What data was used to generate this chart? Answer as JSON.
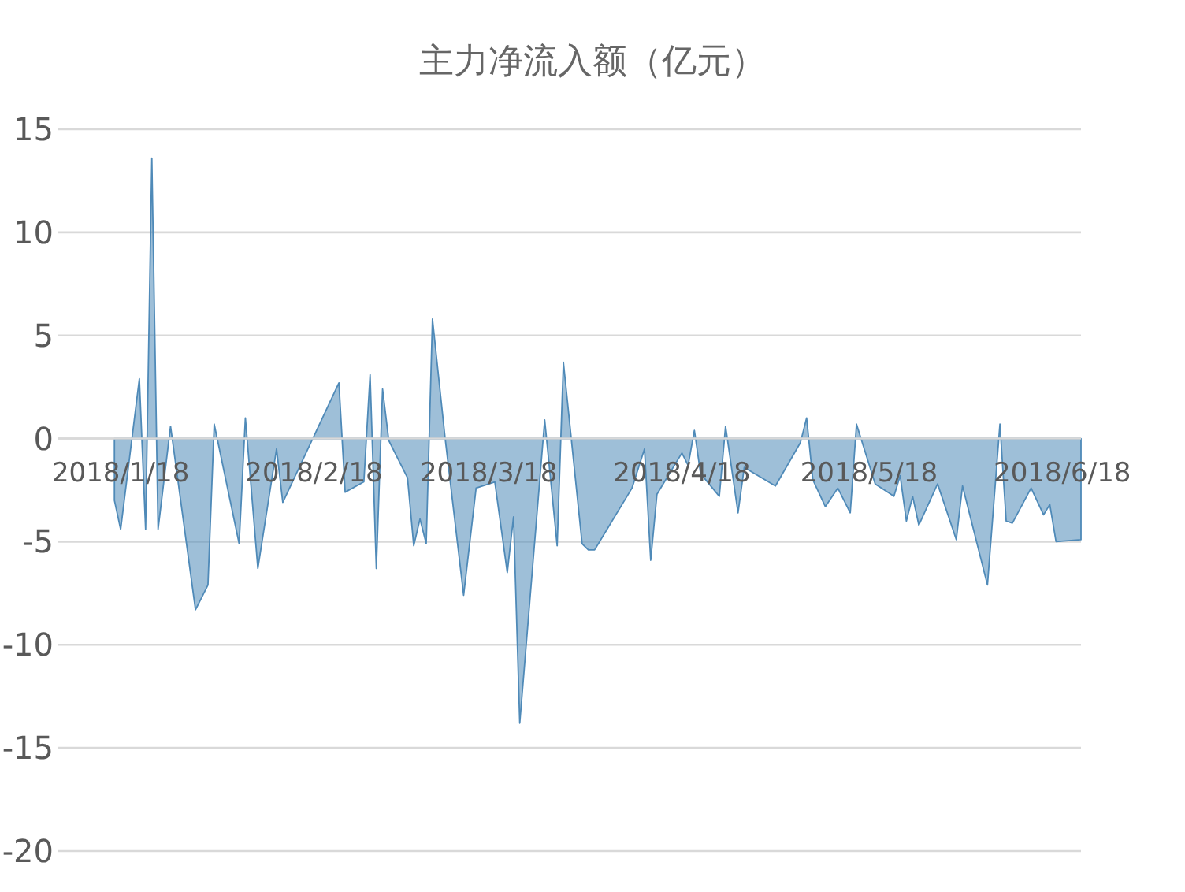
{
  "chart_data": {
    "type": "area",
    "title": "主力净流入额（亿元）",
    "color": "#4f8ab8",
    "grid": "y",
    "xlim": [
      "2018-01-08",
      "2018-06-21"
    ],
    "ylim": [
      -20,
      15
    ],
    "yticks": [
      -20,
      -15,
      -10,
      -5,
      0,
      5,
      10,
      15
    ],
    "xticks": [
      {
        "value": "2018-01-18",
        "label": "2018/1/18"
      },
      {
        "value": "2018-02-18",
        "label": "2018/2/18"
      },
      {
        "value": "2018-03-18",
        "label": "2018/3/18"
      },
      {
        "value": "2018-04-18",
        "label": "2018/4/18"
      },
      {
        "value": "2018-05-18",
        "label": "2018/5/18"
      },
      {
        "value": "2018-06-18",
        "label": "2018/6/18"
      }
    ],
    "x": [
      "2018-01-17",
      "2018-01-18",
      "2018-01-21",
      "2018-01-22",
      "2018-01-23",
      "2018-01-24",
      "2018-01-26",
      "2018-01-30",
      "2018-02-01",
      "2018-02-02",
      "2018-02-06",
      "2018-02-07",
      "2018-02-09",
      "2018-02-12",
      "2018-02-13",
      "2018-02-22",
      "2018-02-23",
      "2018-02-26",
      "2018-02-27",
      "2018-02-28",
      "2018-03-01",
      "2018-03-02",
      "2018-03-05",
      "2018-03-06",
      "2018-03-07",
      "2018-03-08",
      "2018-03-09",
      "2018-03-11",
      "2018-03-14",
      "2018-03-16",
      "2018-03-19",
      "2018-03-21",
      "2018-03-22",
      "2018-03-23",
      "2018-03-27",
      "2018-03-29",
      "2018-03-30",
      "2018-04-02",
      "2018-04-03",
      "2018-04-04",
      "2018-04-10",
      "2018-04-12",
      "2018-04-13",
      "2018-04-14",
      "2018-04-18",
      "2018-04-19",
      "2018-04-20",
      "2018-04-21",
      "2018-04-24",
      "2018-04-25",
      "2018-04-27",
      "2018-04-28",
      "2018-05-03",
      "2018-05-07",
      "2018-05-08",
      "2018-05-09",
      "2018-05-11",
      "2018-05-13",
      "2018-05-15",
      "2018-05-16",
      "2018-05-19",
      "2018-05-22",
      "2018-05-23",
      "2018-05-24",
      "2018-05-25",
      "2018-05-26",
      "2018-05-29",
      "2018-06-01",
      "2018-06-02",
      "2018-06-06",
      "2018-06-08",
      "2018-06-09",
      "2018-06-10",
      "2018-06-13",
      "2018-06-15",
      "2018-06-16",
      "2018-06-17",
      "2018-06-21"
    ],
    "values": [
      -3,
      -4.4,
      2.9,
      -4.4,
      13.6,
      -4.4,
      0.6,
      -8.3,
      -7.1,
      0.7,
      -5.1,
      1.0,
      -6.3,
      -0.5,
      -3.1,
      2.7,
      -2.6,
      -2.1,
      3.1,
      -6.3,
      2.4,
      -0.1,
      -1.9,
      -5.2,
      -3.9,
      -5.1,
      5.8,
      0.1,
      -7.6,
      -2.4,
      -2.1,
      -6.5,
      -3.8,
      -13.8,
      0.9,
      -5.2,
      3.7,
      -5.1,
      -5.4,
      -5.4,
      -2.4,
      -0.5,
      -5.9,
      -2.7,
      -0.7,
      -1.3,
      0.4,
      -1.7,
      -2.8,
      0.6,
      -3.6,
      -1.4,
      -2.3,
      -0.2,
      1.0,
      -2.0,
      -3.3,
      -2.4,
      -3.6,
      0.7,
      -2.2,
      -2.8,
      -1.8,
      -4.0,
      -2.8,
      -4.2,
      -2.2,
      -4.9,
      -2.3,
      -7.1,
      0.7,
      -4.0,
      -4.1,
      -2.4,
      -3.7,
      -3.2,
      -5.0,
      -4.9
    ]
  }
}
